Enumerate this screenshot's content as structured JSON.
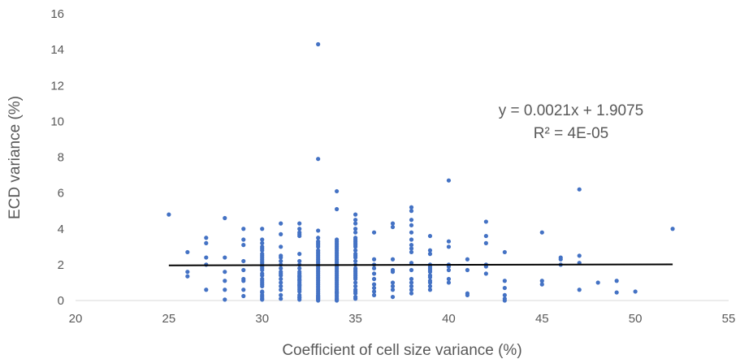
{
  "chart_data": {
    "type": "scatter",
    "xlabel": "Coefficient of cell size variance (%)",
    "ylabel": "ECD variance (%)",
    "xlim": [
      20,
      55
    ],
    "ylim": [
      0,
      16
    ],
    "xticks": [
      "20",
      "25",
      "30",
      "35",
      "40",
      "45",
      "50",
      "55"
    ],
    "yticks": [
      "0",
      "2",
      "4",
      "6",
      "8",
      "10",
      "12",
      "14",
      "16"
    ],
    "grid": false,
    "legend": "none",
    "point_color": "#4472C4",
    "trendline_color": "#000000",
    "trendline": {
      "slope": 0.0021,
      "intercept": 1.9075,
      "x_range": [
        25,
        52
      ],
      "equation": "y = 0.0021x + 1.9075",
      "r_squared": "R² = 4E-05"
    },
    "x": [
      25,
      26,
      26,
      26,
      27,
      27,
      27,
      27,
      27,
      28,
      28,
      28,
      28,
      28,
      28,
      29,
      29,
      29,
      29,
      29,
      29,
      29,
      29,
      29,
      30,
      30,
      30,
      30,
      30,
      30,
      30,
      30,
      30,
      30,
      30,
      30,
      30,
      30,
      30,
      30,
      30,
      30,
      30,
      30,
      30,
      30,
      30,
      30,
      30,
      30,
      30,
      30,
      30,
      31,
      31,
      31,
      31,
      31,
      31,
      31,
      31,
      31,
      31,
      31,
      31,
      31,
      31,
      31,
      31,
      31,
      32,
      32,
      32,
      32,
      32,
      32,
      32,
      32,
      32,
      32,
      32,
      32,
      32,
      32,
      32,
      32,
      32,
      32,
      32,
      32,
      32,
      32,
      32,
      32,
      32,
      32,
      32,
      32,
      33,
      33,
      33,
      33,
      33,
      33,
      33,
      33,
      33,
      33,
      33,
      33,
      33,
      33,
      33,
      33,
      33,
      33,
      33,
      33,
      33,
      33,
      33,
      33,
      33,
      33,
      33,
      33,
      33,
      33,
      33,
      33,
      33,
      33,
      33,
      33,
      33,
      33,
      33,
      33,
      34,
      34,
      34,
      34,
      34,
      34,
      34,
      34,
      34,
      34,
      34,
      34,
      34,
      34,
      34,
      34,
      34,
      34,
      34,
      34,
      34,
      34,
      34,
      34,
      34,
      34,
      34,
      34,
      34,
      34,
      34,
      34,
      34,
      34,
      34,
      34,
      34,
      34,
      34,
      35,
      35,
      35,
      35,
      35,
      35,
      35,
      35,
      35,
      35,
      35,
      35,
      35,
      35,
      35,
      35,
      35,
      35,
      35,
      35,
      35,
      35,
      35,
      35,
      35,
      35,
      35,
      35,
      35,
      35,
      35,
      36,
      36,
      36,
      36,
      36,
      36,
      36,
      36,
      36,
      36,
      37,
      37,
      37,
      37,
      37,
      37,
      37,
      37,
      37,
      38,
      38,
      38,
      38,
      38,
      38,
      38,
      38,
      38,
      38,
      38,
      38,
      38,
      38,
      38,
      38,
      39,
      39,
      39,
      39,
      39,
      39,
      39,
      39,
      39,
      39,
      39,
      39,
      39,
      39,
      40,
      40,
      40,
      40,
      40,
      40,
      40,
      40,
      41,
      41,
      41,
      41,
      42,
      42,
      42,
      42,
      42,
      42,
      43,
      43,
      43,
      43,
      43,
      43,
      45,
      45,
      45,
      46,
      46,
      46,
      47,
      47,
      47,
      47,
      48,
      49,
      49,
      50,
      52
    ],
    "y": [
      4.8,
      2.7,
      1.6,
      1.35,
      3.5,
      3.2,
      2.4,
      2.0,
      0.6,
      4.6,
      2.4,
      1.6,
      1.1,
      0.6,
      0.05,
      4.0,
      3.4,
      3.1,
      2.2,
      1.7,
      1.2,
      1.1,
      0.6,
      0.25,
      4.0,
      3.4,
      3.2,
      3.0,
      2.9,
      2.8,
      2.6,
      2.5,
      2.4,
      2.3,
      2.2,
      2.1,
      2.0,
      1.9,
      1.8,
      1.7,
      1.5,
      1.4,
      1.2,
      1.1,
      1.0,
      0.9,
      0.8,
      0.5,
      0.45,
      0.3,
      0.2,
      0.1,
      0.05,
      4.3,
      3.7,
      3.0,
      2.5,
      2.4,
      2.2,
      2.0,
      1.8,
      1.6,
      1.5,
      1.4,
      1.2,
      1.0,
      0.8,
      0.6,
      0.3,
      0.1,
      4.3,
      4.0,
      3.8,
      3.7,
      3.6,
      2.6,
      2.2,
      2.0,
      1.8,
      1.6,
      1.5,
      1.4,
      1.35,
      1.3,
      1.2,
      1.15,
      1.1,
      1.0,
      0.9,
      0.85,
      0.8,
      0.7,
      0.6,
      0.5,
      0.3,
      0.2,
      0.15,
      0.05,
      14.3,
      7.9,
      3.9,
      3.5,
      3.3,
      3.2,
      3.1,
      3.0,
      2.8,
      2.7,
      2.6,
      2.5,
      2.4,
      2.3,
      2.2,
      2.1,
      2.0,
      1.9,
      1.8,
      1.7,
      1.6,
      1.5,
      1.4,
      1.3,
      1.2,
      1.1,
      1.0,
      0.9,
      0.8,
      0.7,
      0.6,
      0.5,
      0.4,
      0.3,
      0.25,
      0.2,
      0.15,
      0.1,
      0.05,
      0.0,
      6.1,
      5.1,
      3.4,
      3.3,
      3.2,
      3.1,
      3.0,
      2.9,
      2.8,
      2.7,
      2.6,
      2.5,
      2.4,
      2.3,
      2.2,
      2.1,
      2.0,
      1.9,
      1.8,
      1.7,
      1.6,
      1.5,
      1.4,
      1.3,
      1.2,
      1.1,
      1.0,
      0.9,
      0.8,
      0.7,
      0.6,
      0.5,
      0.45,
      0.4,
      0.3,
      0.2,
      0.1,
      0.05,
      0.0,
      4.8,
      4.5,
      4.3,
      4.0,
      3.8,
      3.5,
      3.4,
      3.3,
      3.2,
      3.1,
      3.0,
      2.8,
      2.6,
      2.5,
      2.4,
      2.2,
      2.0,
      1.8,
      1.7,
      1.6,
      1.5,
      1.4,
      1.3,
      1.2,
      1.0,
      0.8,
      0.6,
      0.5,
      0.4,
      0.2,
      0.1,
      3.8,
      2.3,
      2.0,
      1.8,
      1.5,
      1.2,
      0.9,
      0.7,
      0.5,
      0.3,
      4.3,
      4.1,
      2.3,
      1.7,
      1.6,
      1.0,
      0.8,
      0.6,
      0.2,
      5.2,
      5.0,
      4.5,
      4.2,
      3.8,
      3.4,
      3.1,
      2.9,
      2.7,
      2.1,
      1.7,
      1.2,
      1.0,
      0.8,
      0.6,
      0.4,
      3.6,
      2.8,
      2.6,
      2.0,
      1.9,
      1.8,
      1.7,
      1.6,
      1.4,
      1.3,
      1.1,
      1.0,
      0.8,
      0.6,
      6.7,
      3.3,
      3.0,
      2.0,
      1.9,
      1.7,
      1.2,
      1.0,
      2.3,
      1.7,
      0.4,
      0.3,
      4.4,
      3.6,
      3.2,
      2.0,
      1.9,
      1.5,
      2.7,
      1.1,
      0.7,
      0.3,
      0.1,
      0.0,
      3.8,
      1.1,
      0.9,
      2.4,
      2.3,
      2.0,
      6.2,
      2.5,
      2.1,
      0.6,
      1.0,
      1.1,
      0.45,
      0.5,
      4.0
    ]
  }
}
